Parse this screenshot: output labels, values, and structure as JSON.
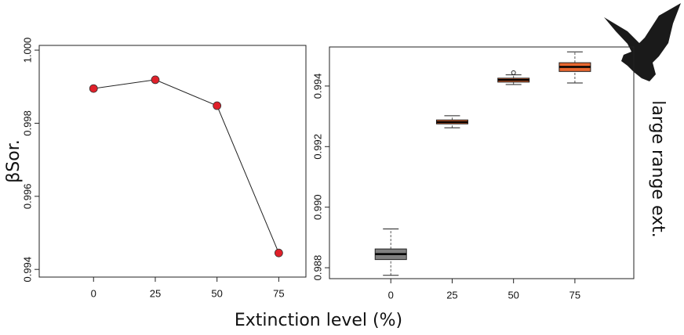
{
  "chart_data": [
    {
      "type": "line",
      "ylabel": "βSor.",
      "xlabel": "Extinction level (%)",
      "x": [
        0,
        25,
        50,
        75
      ],
      "values": [
        0.99895,
        0.99919,
        0.99848,
        0.99445
      ],
      "color": "#e0202a",
      "xlim": [
        -22,
        86
      ],
      "ylim": [
        0.99379,
        1.00013
      ],
      "xticks": [
        0,
        25,
        50,
        75
      ],
      "yticks": [
        0.994,
        0.996,
        0.998,
        {
          "value": 1,
          "label": "1.000"
        }
      ]
    },
    {
      "type": "box",
      "annotation": "large range ext.",
      "xlim": [
        -25,
        99
      ],
      "ylim": [
        0.98764,
        0.99529
      ],
      "xticks": [
        0,
        25,
        50,
        75
      ],
      "yticks": [
        0.988,
        {
          "value": 0.99,
          "label": "0.990"
        },
        0.992,
        0.994
      ],
      "boxes": [
        {
          "x": 0,
          "low": 0.98775,
          "q1": 0.98827,
          "median": 0.98845,
          "q3": 0.98862,
          "high": 0.98928,
          "color": "#7f7f7f",
          "outliers": []
        },
        {
          "x": 25,
          "low": 0.99262,
          "q1": 0.99275,
          "median": 0.99281,
          "q3": 0.99288,
          "high": 0.99302,
          "color": "#e8662e",
          "outliers": []
        },
        {
          "x": 50,
          "low": 0.99405,
          "q1": 0.99413,
          "median": 0.9942,
          "q3": 0.99426,
          "high": 0.99437,
          "color": "#e8662e",
          "outliers": [
            0.99444
          ]
        },
        {
          "x": 75,
          "low": 0.9941,
          "q1": 0.99448,
          "median": 0.99463,
          "q3": 0.99477,
          "high": 0.99513,
          "color": "#e8662e",
          "outliers": []
        }
      ]
    }
  ]
}
